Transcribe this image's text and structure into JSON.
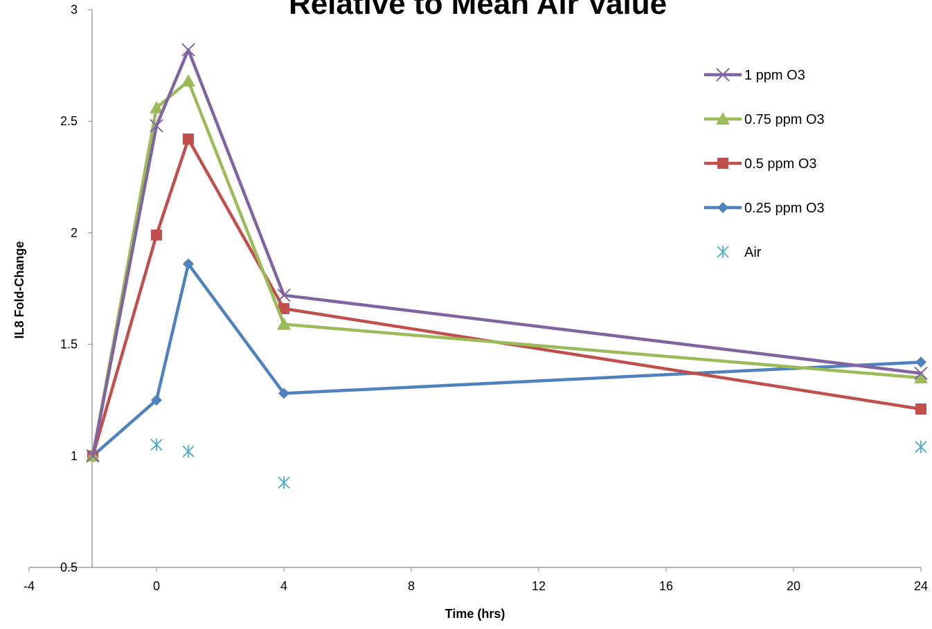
{
  "chart_data": {
    "type": "line",
    "title": "Relative to Mean Air Value",
    "xlabel": "Time (hrs)",
    "ylabel": "IL8 Fold-Change",
    "xlim": [
      -4,
      24
    ],
    "ylim": [
      0.5,
      3
    ],
    "x_ticks": [
      -4,
      0,
      4,
      8,
      12,
      16,
      20,
      24
    ],
    "y_ticks": [
      0.5,
      1,
      1.5,
      2,
      2.5,
      3
    ],
    "x_tick_labels": [
      "-4",
      "0",
      "4",
      "8",
      "12",
      "16",
      "20",
      "24"
    ],
    "y_tick_labels": [
      "0.5",
      "1",
      "1.5",
      "2",
      "2.5",
      "3"
    ],
    "grid": false,
    "legend_position": "top-right",
    "series": [
      {
        "name": "1 ppm O3",
        "color": "#8064A2",
        "marker": "x-icon",
        "line": true,
        "x": [
          -2,
          0,
          1,
          4,
          24
        ],
        "y": [
          1.0,
          2.48,
          2.82,
          1.72,
          1.37
        ]
      },
      {
        "name": "0.75 ppm O3",
        "color": "#9BBB59",
        "marker": "triangle-icon",
        "line": true,
        "x": [
          -2,
          0,
          1,
          4,
          24
        ],
        "y": [
          1.0,
          2.56,
          2.68,
          1.59,
          1.35
        ]
      },
      {
        "name": "0.5 ppm O3",
        "color": "#C0504D",
        "marker": "square-icon",
        "line": true,
        "x": [
          -2,
          0,
          1,
          4,
          24
        ],
        "y": [
          1.0,
          1.99,
          2.42,
          1.66,
          1.21
        ]
      },
      {
        "name": "0.25 ppm O3",
        "color": "#4F81BD",
        "marker": "diamond-icon",
        "line": true,
        "x": [
          -2,
          0,
          1,
          4,
          24
        ],
        "y": [
          1.0,
          1.25,
          1.86,
          1.28,
          1.42
        ]
      },
      {
        "name": "Air",
        "color": "#4BACC6",
        "marker": "asterisk-icon",
        "line": false,
        "x": [
          -2,
          0,
          1,
          4,
          24
        ],
        "y": [
          1.0,
          1.05,
          1.02,
          0.88,
          1.04
        ]
      }
    ]
  }
}
